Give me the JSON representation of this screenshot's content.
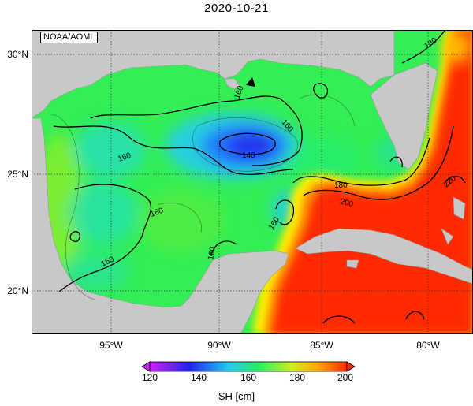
{
  "title": "2020-10-21",
  "credit": "NOAA/AOML",
  "lat_ticks": [
    "30°N",
    "25°N",
    "20°N"
  ],
  "lon_ticks": [
    "95°W",
    "90°W",
    "85°W",
    "80°W"
  ],
  "contour_labels": {
    "c160_west": "160",
    "c160_north": "160",
    "c160_center": "160",
    "c160_mid": "160",
    "c160_sw": "160",
    "c140": "140",
    "c160_south": "160",
    "c180_loop": "180",
    "c200": "200",
    "c180_atlantic": "180",
    "c220": "220",
    "c160_east": "160"
  },
  "colorbar": {
    "title": "SH [cm]",
    "tick_labels": [
      "120",
      "140",
      "160",
      "180",
      "200"
    ],
    "stops": [
      "#cc22ee",
      "#2222ee",
      "#22ccee",
      "#22ee66",
      "#ccee22",
      "#ffcc00",
      "#ff2a00"
    ]
  },
  "colors": {
    "land": "#c8c8c8",
    "background_field": "#33ee55",
    "loop_current": "#ff2a00",
    "eddy_low": "#2a55ff"
  }
}
